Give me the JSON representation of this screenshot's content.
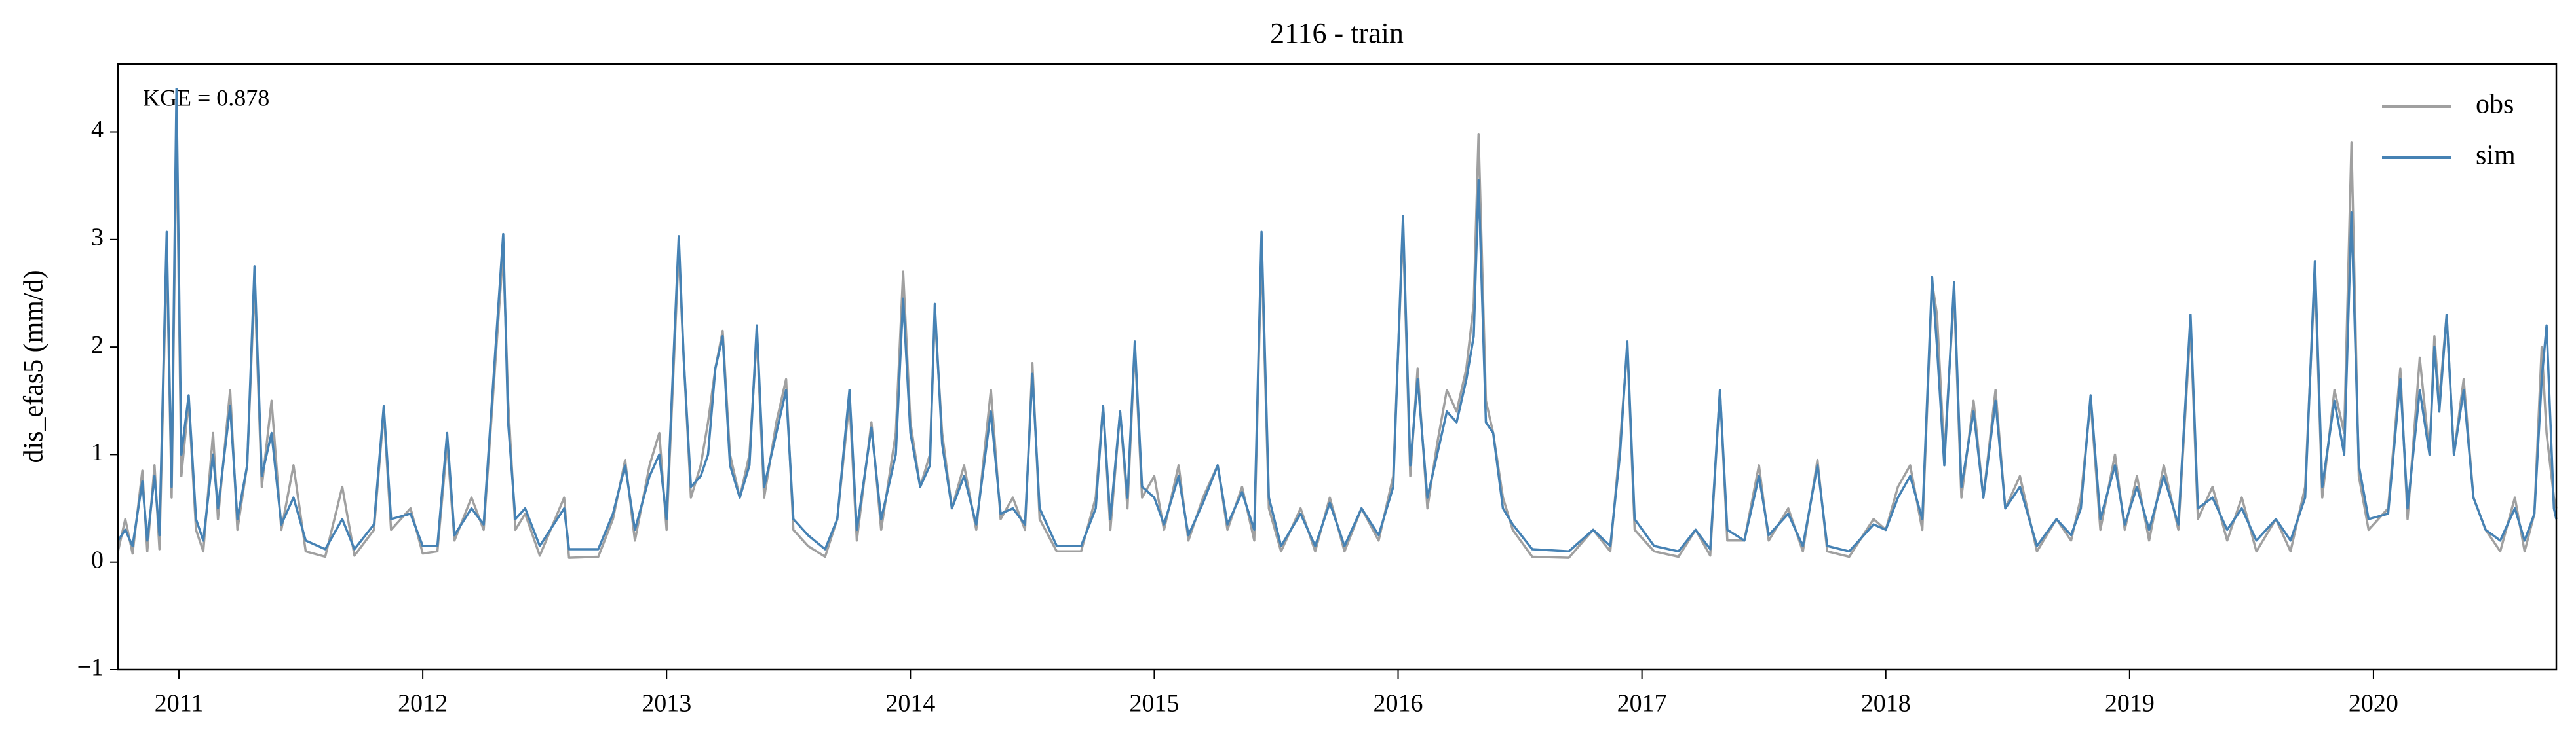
{
  "chart_data": {
    "type": "line",
    "title": "2116 - train",
    "ylabel": "dis_efas5 (mm/d)",
    "annotation": "KGE = 0.878",
    "legend": "upper right",
    "xlim": [
      2010.75,
      2020.75
    ],
    "xticks": [
      2011,
      2012,
      2013,
      2014,
      2015,
      2016,
      2017,
      2018,
      2019,
      2020
    ],
    "ylim": [
      -1,
      4.63
    ],
    "yticks": [
      {
        "value": -1,
        "label": "−1"
      },
      0,
      1,
      2,
      3,
      4
    ],
    "x": [
      2010.75,
      2010.78,
      2010.81,
      2010.85,
      2010.87,
      2010.9,
      2010.92,
      2010.95,
      2010.97,
      2010.99,
      2011.01,
      2011.04,
      2011.07,
      2011.1,
      2011.14,
      2011.16,
      2011.21,
      2011.24,
      2011.28,
      2011.31,
      2011.34,
      2011.38,
      2011.42,
      2011.47,
      2011.52,
      2011.6,
      2011.67,
      2011.72,
      2011.8,
      2011.84,
      2011.87,
      2011.95,
      2012.0,
      2012.06,
      2012.1,
      2012.13,
      2012.2,
      2012.25,
      2012.33,
      2012.35,
      2012.38,
      2012.42,
      2012.48,
      2012.58,
      2012.6,
      2012.72,
      2012.78,
      2012.83,
      2012.87,
      2012.93,
      2012.97,
      2013.0,
      2013.05,
      2013.07,
      2013.1,
      2013.14,
      2013.17,
      2013.2,
      2013.23,
      2013.26,
      2013.3,
      2013.34,
      2013.37,
      2013.4,
      2013.45,
      2013.49,
      2013.52,
      2013.58,
      2013.65,
      2013.7,
      2013.75,
      2013.78,
      2013.84,
      2013.88,
      2013.94,
      2013.97,
      2014.0,
      2014.04,
      2014.08,
      2014.1,
      2014.13,
      2014.17,
      2014.22,
      2014.27,
      2014.33,
      2014.37,
      2014.42,
      2014.47,
      2014.5,
      2014.53,
      2014.6,
      2014.7,
      2014.76,
      2014.79,
      2014.82,
      2014.86,
      2014.89,
      2014.92,
      2014.95,
      2015.0,
      2015.04,
      2015.1,
      2015.14,
      2015.2,
      2015.26,
      2015.3,
      2015.36,
      2015.41,
      2015.44,
      2015.47,
      2015.52,
      2015.6,
      2015.66,
      2015.72,
      2015.78,
      2015.85,
      2015.92,
      2015.98,
      2016.02,
      2016.05,
      2016.08,
      2016.12,
      2016.16,
      2016.2,
      2016.24,
      2016.28,
      2016.31,
      2016.33,
      2016.36,
      2016.39,
      2016.43,
      2016.47,
      2016.55,
      2016.7,
      2016.8,
      2016.87,
      2016.91,
      2016.94,
      2016.97,
      2017.05,
      2017.15,
      2017.22,
      2017.28,
      2017.32,
      2017.35,
      2017.42,
      2017.48,
      2017.52,
      2017.6,
      2017.66,
      2017.72,
      2017.76,
      2017.85,
      2017.95,
      2018.0,
      2018.05,
      2018.1,
      2018.15,
      2018.19,
      2018.21,
      2018.24,
      2018.28,
      2018.31,
      2018.36,
      2018.4,
      2018.45,
      2018.49,
      2018.55,
      2018.62,
      2018.7,
      2018.76,
      2018.8,
      2018.84,
      2018.88,
      2018.94,
      2018.98,
      2019.03,
      2019.08,
      2019.14,
      2019.2,
      2019.25,
      2019.28,
      2019.34,
      2019.4,
      2019.46,
      2019.52,
      2019.6,
      2019.66,
      2019.72,
      2019.76,
      2019.79,
      2019.84,
      2019.88,
      2019.91,
      2019.94,
      2019.98,
      2020.06,
      2020.11,
      2020.14,
      2020.19,
      2020.23,
      2020.25,
      2020.27,
      2020.3,
      2020.33,
      2020.37,
      2020.41,
      2020.46,
      2020.52,
      2020.58,
      2020.62,
      2020.66,
      2020.69,
      2020.71,
      2020.74,
      2020.75
    ],
    "series": [
      {
        "name": "obs",
        "color": "#a0a0a0",
        "values": [
          0.1,
          0.4,
          0.08,
          0.85,
          0.1,
          0.9,
          0.12,
          2.9,
          0.6,
          4.1,
          0.8,
          1.5,
          0.3,
          0.1,
          1.2,
          0.4,
          1.6,
          0.3,
          0.9,
          2.6,
          0.7,
          1.5,
          0.3,
          0.9,
          0.1,
          0.05,
          0.7,
          0.06,
          0.3,
          1.4,
          0.3,
          0.5,
          0.08,
          0.1,
          1.1,
          0.2,
          0.6,
          0.3,
          2.9,
          1.5,
          0.3,
          0.45,
          0.06,
          0.6,
          0.04,
          0.05,
          0.4,
          0.95,
          0.2,
          0.9,
          1.2,
          0.3,
          2.9,
          1.9,
          0.6,
          0.9,
          1.3,
          1.8,
          2.15,
          1.0,
          0.6,
          1.0,
          2.1,
          0.6,
          1.3,
          1.7,
          0.3,
          0.15,
          0.05,
          0.4,
          1.5,
          0.2,
          1.3,
          0.3,
          1.2,
          2.7,
          1.3,
          0.7,
          1.0,
          2.3,
          1.2,
          0.5,
          0.9,
          0.3,
          1.6,
          0.4,
          0.6,
          0.3,
          1.85,
          0.4,
          0.1,
          0.1,
          0.6,
          1.45,
          0.3,
          1.4,
          0.5,
          2.0,
          0.6,
          0.8,
          0.3,
          0.9,
          0.2,
          0.6,
          0.9,
          0.3,
          0.7,
          0.2,
          2.9,
          0.5,
          0.1,
          0.5,
          0.1,
          0.6,
          0.1,
          0.5,
          0.2,
          0.8,
          3.1,
          0.8,
          1.8,
          0.5,
          1.1,
          1.6,
          1.4,
          1.8,
          2.4,
          3.98,
          1.5,
          1.2,
          0.6,
          0.3,
          0.05,
          0.04,
          0.3,
          0.1,
          1.1,
          2.0,
          0.3,
          0.1,
          0.05,
          0.3,
          0.06,
          1.6,
          0.2,
          0.2,
          0.9,
          0.2,
          0.5,
          0.1,
          0.95,
          0.1,
          0.05,
          0.4,
          0.3,
          0.7,
          0.9,
          0.3,
          2.6,
          2.3,
          1.0,
          2.5,
          0.6,
          1.5,
          0.6,
          1.6,
          0.5,
          0.8,
          0.1,
          0.4,
          0.2,
          0.6,
          1.5,
          0.3,
          1.0,
          0.3,
          0.8,
          0.2,
          0.9,
          0.3,
          2.2,
          0.4,
          0.7,
          0.2,
          0.6,
          0.1,
          0.4,
          0.1,
          0.7,
          2.7,
          0.6,
          1.6,
          1.2,
          3.9,
          0.8,
          0.3,
          0.5,
          1.8,
          0.4,
          1.9,
          1.0,
          2.1,
          1.5,
          2.3,
          1.0,
          1.7,
          0.6,
          0.3,
          0.1,
          0.6,
          0.1,
          0.45,
          2.0,
          1.2,
          0.6,
          0.5
        ]
      },
      {
        "name": "sim",
        "color": "#4682b4",
        "values": [
          0.2,
          0.3,
          0.15,
          0.75,
          0.2,
          0.8,
          0.25,
          3.07,
          0.7,
          4.4,
          1.0,
          1.55,
          0.4,
          0.2,
          1.0,
          0.5,
          1.45,
          0.4,
          0.9,
          2.75,
          0.8,
          1.2,
          0.35,
          0.6,
          0.2,
          0.12,
          0.4,
          0.12,
          0.35,
          1.45,
          0.4,
          0.45,
          0.15,
          0.15,
          1.2,
          0.25,
          0.5,
          0.35,
          3.05,
          1.3,
          0.4,
          0.5,
          0.15,
          0.5,
          0.12,
          0.12,
          0.45,
          0.9,
          0.3,
          0.8,
          1.0,
          0.4,
          3.03,
          1.9,
          0.7,
          0.8,
          1.0,
          1.8,
          2.1,
          0.9,
          0.6,
          0.9,
          2.2,
          0.7,
          1.2,
          1.6,
          0.4,
          0.25,
          0.12,
          0.4,
          1.6,
          0.3,
          1.25,
          0.4,
          1.0,
          2.45,
          1.2,
          0.7,
          0.9,
          2.4,
          1.1,
          0.5,
          0.8,
          0.35,
          1.4,
          0.45,
          0.5,
          0.35,
          1.75,
          0.5,
          0.15,
          0.15,
          0.5,
          1.45,
          0.4,
          1.4,
          0.6,
          2.05,
          0.7,
          0.6,
          0.35,
          0.8,
          0.25,
          0.55,
          0.9,
          0.35,
          0.65,
          0.3,
          3.07,
          0.6,
          0.15,
          0.45,
          0.15,
          0.55,
          0.15,
          0.5,
          0.25,
          0.7,
          3.22,
          0.9,
          1.7,
          0.6,
          1.0,
          1.4,
          1.3,
          1.7,
          2.1,
          3.55,
          1.3,
          1.2,
          0.5,
          0.35,
          0.12,
          0.1,
          0.3,
          0.15,
          1.0,
          2.05,
          0.4,
          0.15,
          0.1,
          0.3,
          0.12,
          1.6,
          0.3,
          0.2,
          0.8,
          0.25,
          0.45,
          0.15,
          0.9,
          0.15,
          0.1,
          0.35,
          0.3,
          0.6,
          0.8,
          0.4,
          2.65,
          2.0,
          0.9,
          2.6,
          0.7,
          1.4,
          0.6,
          1.5,
          0.5,
          0.7,
          0.15,
          0.4,
          0.25,
          0.5,
          1.55,
          0.4,
          0.9,
          0.35,
          0.7,
          0.3,
          0.8,
          0.35,
          2.3,
          0.5,
          0.6,
          0.3,
          0.5,
          0.2,
          0.4,
          0.2,
          0.6,
          2.8,
          0.7,
          1.5,
          1.0,
          3.25,
          0.9,
          0.4,
          0.45,
          1.7,
          0.5,
          1.6,
          1.0,
          2.0,
          1.4,
          2.3,
          1.0,
          1.6,
          0.6,
          0.3,
          0.2,
          0.5,
          0.2,
          0.45,
          1.7,
          2.2,
          0.5,
          0.4
        ]
      }
    ]
  }
}
